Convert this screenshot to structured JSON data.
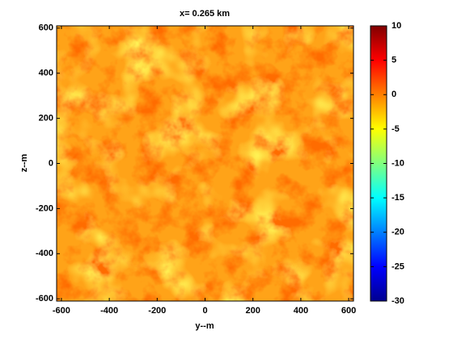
{
  "chart_data": {
    "type": "heatmap",
    "title": "x= 0.265 km",
    "x_label": "y--m",
    "y_label": "z--m",
    "xlim": [
      -620,
      620
    ],
    "ylim": [
      -610,
      610
    ],
    "xticks": [
      -600,
      -400,
      -200,
      0,
      200,
      400,
      600
    ],
    "yticks": [
      -600,
      -400,
      -200,
      0,
      200,
      400,
      600
    ],
    "colorbar": {
      "clim": [
        -30,
        10
      ],
      "ticks": [
        10,
        5,
        0,
        -5,
        -10,
        -15,
        -20,
        -25,
        -30
      ],
      "colormap": "jet"
    }
  }
}
